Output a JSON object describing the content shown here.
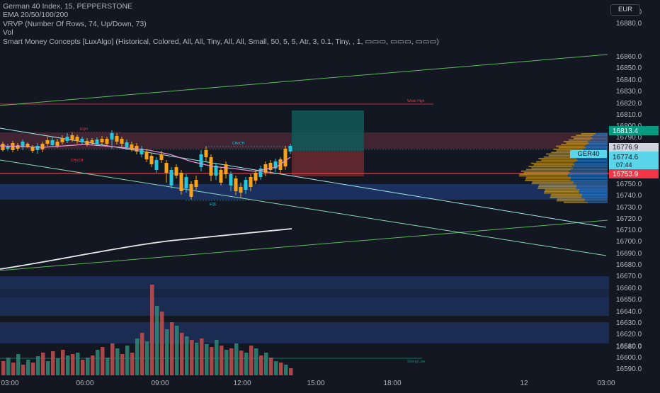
{
  "header": {
    "symbol_line": "German 40 Index, 15, PEPPERSTONE",
    "ema_line": "EMA 20/50/100/200",
    "vrvp_line": "VRVP (Number Of Rows, 74, Up/Down, 73)",
    "vol_line": "Vol",
    "smc_line": "Smart Money Concepts [LuxAlgo] (Historical, Colored, All, All, Tiny, All, All, Small, 50, 5, 5, Atr, 3, 0.1, Tiny, , 1, ▭▭▭, ▭▭▭, ▭▭▭)"
  },
  "currency_button": "EUR",
  "price_axis": {
    "ticks": [
      "16900.0",
      "16880.0",
      "16860.0",
      "16850.0",
      "16840.0",
      "16830.0",
      "16820.0",
      "16810.0",
      "16800.0",
      "16790.0",
      "16770.0",
      "16760.0",
      "16750.0",
      "16740.0",
      "16730.0",
      "16720.0",
      "16710.0",
      "16700.0",
      "16690.0",
      "16680.0",
      "16670.0",
      "16660.0",
      "16650.0",
      "16640.0",
      "16630.0",
      "16620.0",
      "16610.0",
      "16600.0",
      "16590.0",
      "16580.0"
    ],
    "badge_target": "16813.4",
    "badge_last": "16776.9",
    "badge_bid": "16774.6",
    "badge_timer": "07:44",
    "badge_stop": "16753.9",
    "symbol_tag": "GER40"
  },
  "time_axis": [
    "03:00",
    "06:00",
    "09:00",
    "12:00",
    "15:00",
    "18:00",
    "12",
    "03:00"
  ],
  "annotations": {
    "weak_high": "Weak High",
    "strong_low": "Strong Low",
    "choch_1": "CHoCH",
    "choch_2": "CHoCH",
    "eqh": "EQH",
    "eql": "EQL"
  },
  "colors": {
    "background": "#131722",
    "bull": "#f7a21b",
    "bear": "#26c6da",
    "vol_bull": "#c15050",
    "vol_bear": "#2e8b78",
    "text": "#b2b5be",
    "red_line": "#f23645",
    "target_badge": "#089981",
    "grid": "#1e222d"
  }
}
